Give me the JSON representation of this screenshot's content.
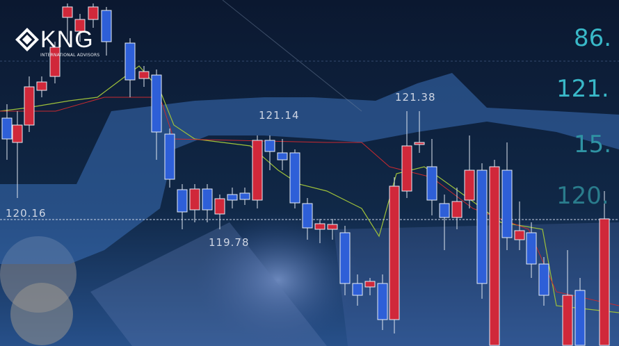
{
  "logo": {
    "name": "KNG",
    "subtitle": "INTERNATIONAL ADVISORS"
  },
  "price_labels": {
    "high_left": "121.14",
    "high_right": "121.38",
    "level_line": "120.16",
    "low": "119.78"
  },
  "side_readouts": [
    "86.",
    "121.",
    "15.",
    "120."
  ],
  "colors": {
    "background": "#0a1a33",
    "cloud": "#3a6fb8",
    "bull_candle": "#d0283a",
    "bear_candle": "#2e5fd8",
    "readout": "#39b8c8"
  }
}
